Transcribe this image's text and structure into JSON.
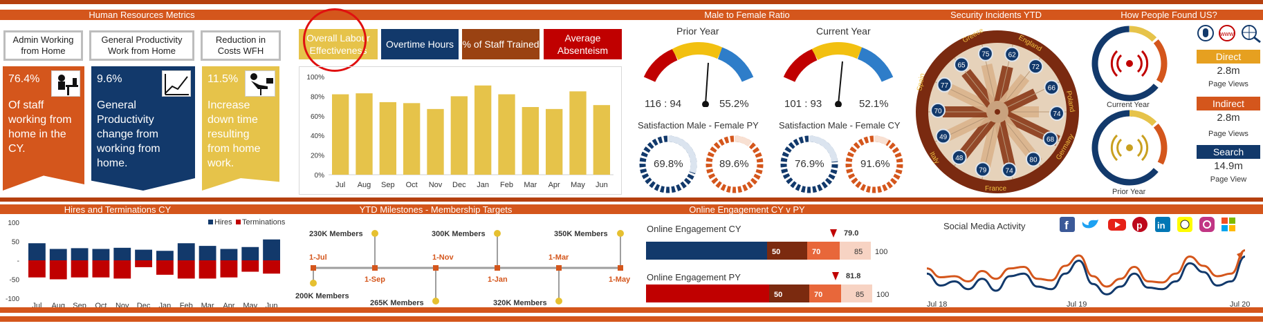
{
  "colors": {
    "orange": "#D4561C",
    "rust": "#B5400F",
    "navy": "#12396B",
    "gold": "#E6C34A",
    "brown": "#9A4212",
    "red": "#C00000"
  },
  "sections": {
    "hr": "Human Resources Metrics",
    "ratio": "Male to Female Ratio",
    "security": "Security Incidents YTD",
    "found": "How People Found US?",
    "hires": "Hires and Terminations CY",
    "milestones": "YTD Milestones - Membership Targets",
    "engagement": "Online Engagement CY v PY"
  },
  "hr_boxes": [
    "Admin Working from Home",
    "General Productivity Work from Home",
    "Reduction in Costs WFH"
  ],
  "kpis": [
    {
      "pct": "76.4%",
      "desc": "Of staff working from home in the CY."
    },
    {
      "pct": "9.6%",
      "desc": "General Productivity change from working from home."
    },
    {
      "pct": "11.5%",
      "desc": "Increase down time resulting from home work."
    }
  ],
  "tabs": [
    "Overall Labour Effectiveness",
    "Overtime Hours",
    "% of Staff Trained",
    "Average Absenteism"
  ],
  "gauges": {
    "prior_title": "Prior Year",
    "prior_ratio": "116 : 94",
    "prior_pct": "55.2%",
    "current_title": "Current  Year",
    "current_ratio": "101 : 93",
    "current_pct": "52.1%"
  },
  "satisfaction": {
    "py_title": "Satisfaction Male - Female PY",
    "cy_title": "Satisfaction Male - Female CY",
    "py_male": "69.8%",
    "py_female": "89.6%",
    "cy_male": "76.9%",
    "cy_female": "91.6%"
  },
  "security_labels": {
    "numbers": [
      "75",
      "62",
      "72",
      "66",
      "74",
      "68",
      "80",
      "74",
      "79",
      "48",
      "49",
      "70",
      "77",
      "65"
    ],
    "countries": [
      "Greece",
      "England",
      "Poland",
      "Germany",
      "France",
      "Italy",
      "Spain"
    ]
  },
  "found": {
    "current_label": "Current Year",
    "prior_label": "Prior Year",
    "direct": "Direct",
    "direct_val": "2.8m",
    "direct_sub": "Page Views",
    "indirect": "Indirect",
    "indirect_val": "2.8m",
    "indirect_sub": "Page Views",
    "search": "Search",
    "search_val": "14.9m",
    "search_sub": "Page View",
    "web_icon_text": "www"
  },
  "engagement": {
    "cy_title": "Online Engagement CY",
    "py_title": "Online Engagement PY",
    "cy_marker": "79.0",
    "py_marker": "81.8",
    "band_labels": [
      "50",
      "70",
      "85",
      "100"
    ]
  },
  "social": {
    "title": "Social Media Activity",
    "x_labels": [
      "Jul 18",
      "Jul 19",
      "Jul 20"
    ]
  },
  "milestones": {
    "top": [
      "230K Members",
      "300K Members",
      "350K Members"
    ],
    "bottom": [
      "200K Members",
      "265K Members",
      "320K Members"
    ],
    "dates_top": [
      "1-Jul",
      "1-Nov",
      "1-Mar"
    ],
    "dates_bottom": [
      "1-Sep",
      "1-Jan",
      "1-May"
    ]
  },
  "chart_data": [
    {
      "type": "bar",
      "categories": [
        "Jul",
        "Aug",
        "Sep",
        "Oct",
        "Nov",
        "Dec",
        "Jan",
        "Feb",
        "Mar",
        "Apr",
        "May",
        "Jun"
      ],
      "values": [
        82,
        83,
        74,
        73,
        67,
        80,
        91,
        82,
        69,
        67,
        85,
        71
      ],
      "ylim": [
        0,
        100
      ],
      "ytick_labels": [
        "0%",
        "20%",
        "40%",
        "60%",
        "80%",
        "100%"
      ],
      "grid": false
    },
    {
      "type": "bar",
      "categories": [
        "Jul",
        "Aug",
        "Sep",
        "Oct",
        "Nov",
        "Dec",
        "Jan",
        "Feb",
        "Mar",
        "Apr",
        "May",
        "Jun"
      ],
      "series": [
        {
          "name": "Hires",
          "values": [
            45,
            30,
            32,
            30,
            33,
            28,
            25,
            45,
            38,
            30,
            35,
            55
          ]
        },
        {
          "name": "Terminations",
          "values": [
            -45,
            -50,
            -45,
            -45,
            -48,
            -18,
            -38,
            -48,
            -48,
            -45,
            -30,
            -35
          ]
        }
      ],
      "ylim": [
        -100,
        100
      ],
      "ytick_labels": [
        "100",
        "50",
        "-",
        "-50",
        "-100"
      ],
      "legend": "top-right"
    },
    {
      "type": "line",
      "x_labels": [
        "Jul 18",
        "Jul 19",
        "Jul 20"
      ],
      "series": [
        {
          "values": [
            55,
            38,
            40,
            30,
            50,
            35,
            55,
            58,
            35,
            32,
            60,
            80,
            40,
            20,
            35,
            58,
            30,
            28,
            45,
            78,
            60,
            40,
            45,
            90
          ]
        },
        {
          "values": [
            45,
            22,
            30,
            15,
            35,
            12,
            40,
            45,
            20,
            15,
            45,
            70,
            25,
            5,
            20,
            45,
            18,
            15,
            30,
            65,
            48,
            22,
            30,
            78
          ]
        }
      ],
      "ylim": [
        0,
        100
      ]
    }
  ]
}
